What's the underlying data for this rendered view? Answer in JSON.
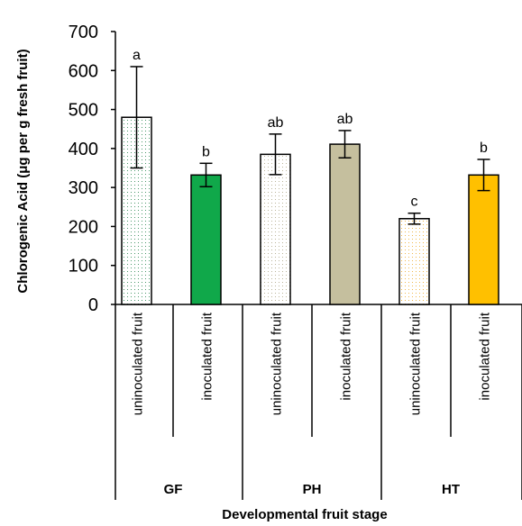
{
  "chart_data": {
    "type": "bar",
    "ylabel": "Chlorogenic Acid (μg per g fresh fruit)",
    "xlabel": "Developmental  fruit stage",
    "ylim": [
      0,
      700
    ],
    "yticks": [
      0,
      100,
      200,
      300,
      400,
      500,
      600,
      700
    ],
    "grid": false,
    "groups": [
      {
        "name": "GF",
        "bars": [
          {
            "label": "uninoculated fruit",
            "value": 480,
            "error": 130,
            "letter": "a",
            "fill": "#ffffff",
            "dotColor": "#4c9a6c",
            "pattern": "dots"
          },
          {
            "label": "inoculated fruit",
            "value": 332,
            "error": 30,
            "letter": "b",
            "fill": "#10a84a",
            "pattern": "solid"
          }
        ]
      },
      {
        "name": "PH",
        "bars": [
          {
            "label": "uninoculated fruit",
            "value": 385,
            "error": 52,
            "letter": "ab",
            "fill": "#ffffff",
            "dotColor": "#bab49a",
            "pattern": "dots"
          },
          {
            "label": "inoculated fruit",
            "value": 411,
            "error": 35,
            "letter": "ab",
            "fill": "#c5bf9e",
            "pattern": "solid"
          }
        ]
      },
      {
        "name": "HT",
        "bars": [
          {
            "label": "uninoculated fruit",
            "value": 220,
            "error": 14,
            "letter": "c",
            "fill": "#ffffff",
            "dotColor": "#f0b84a",
            "pattern": "dots"
          },
          {
            "label": "inoculated fruit",
            "value": 332,
            "error": 40,
            "letter": "b",
            "fill": "#ffc000",
            "pattern": "solid"
          }
        ]
      }
    ]
  }
}
